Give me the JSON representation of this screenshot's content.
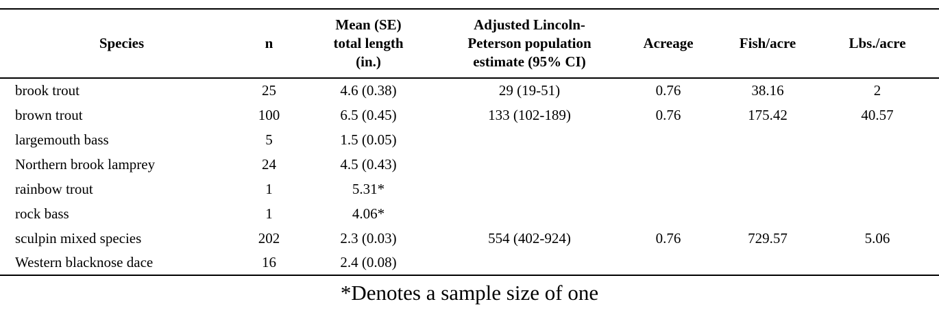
{
  "colors": {
    "background": "#ffffff",
    "text": "#000000",
    "rule": "#000000"
  },
  "table": {
    "columns": [
      {
        "key": "species",
        "label": "Species"
      },
      {
        "key": "n",
        "label": "n"
      },
      {
        "key": "mean_se",
        "label": "Mean (SE)\ntotal length\n(in.)"
      },
      {
        "key": "lp_estimate",
        "label": "Adjusted Lincoln-\nPeterson population\nestimate (95% CI)"
      },
      {
        "key": "acreage",
        "label": "Acreage"
      },
      {
        "key": "fish_per_acre",
        "label": "Fish/acre"
      },
      {
        "key": "lbs_per_acre",
        "label": "Lbs./acre"
      }
    ],
    "rows": [
      [
        "brook trout",
        "25",
        "4.6 (0.38)",
        "29 (19-51)",
        "0.76",
        "38.16",
        "2"
      ],
      [
        "brown trout",
        "100",
        "6.5 (0.45)",
        "133 (102-189)",
        "0.76",
        "175.42",
        "40.57"
      ],
      [
        "largemouth bass",
        "5",
        "1.5 (0.05)",
        "",
        "",
        "",
        ""
      ],
      [
        "Northern brook lamprey",
        "24",
        "4.5 (0.43)",
        "",
        "",
        "",
        ""
      ],
      [
        "rainbow trout",
        "1",
        "5.31*",
        "",
        "",
        "",
        ""
      ],
      [
        "rock bass",
        "1",
        "4.06*",
        "",
        "",
        "",
        ""
      ],
      [
        "sculpin mixed species",
        "202",
        "2.3 (0.03)",
        "554 (402-924)",
        "0.76",
        "729.57",
        "5.06"
      ],
      [
        "Western blacknose dace",
        "16",
        "2.4 (0.08)",
        "",
        "",
        "",
        ""
      ]
    ],
    "footnote": "*Denotes a sample size of one"
  }
}
